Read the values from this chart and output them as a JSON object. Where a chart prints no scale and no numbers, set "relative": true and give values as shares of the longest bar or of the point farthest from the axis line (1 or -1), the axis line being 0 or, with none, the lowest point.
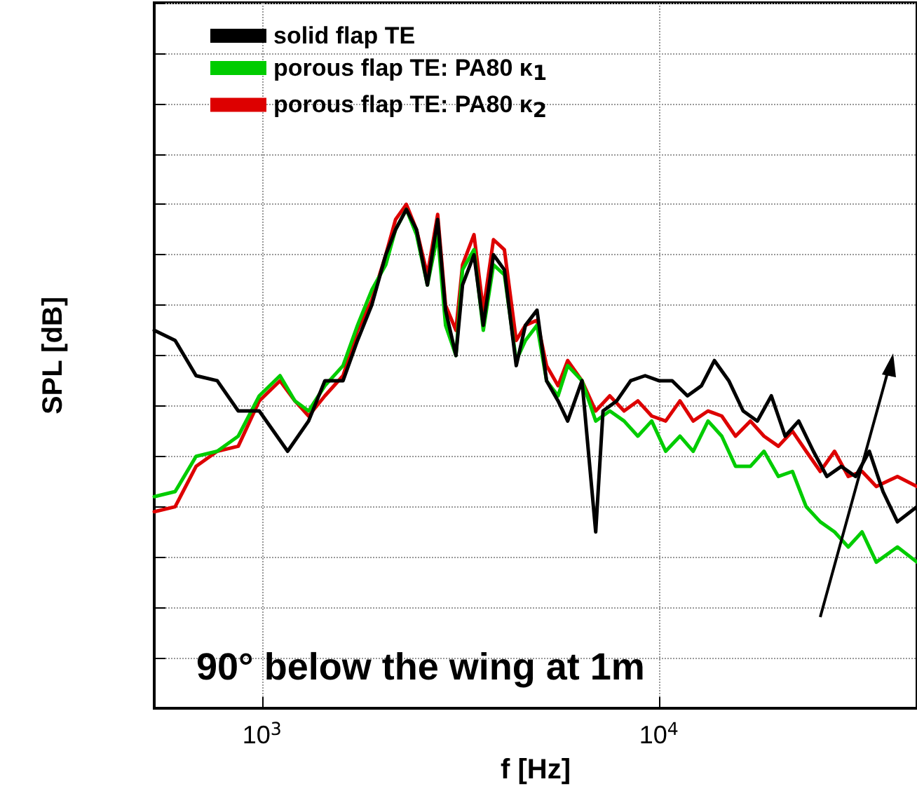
{
  "chart_data": {
    "type": "line",
    "relative": true,
    "xlabel": "f [Hz]",
    "ylabel": "SPL [dB]",
    "log": "x",
    "xlim": [
      535,
      44700
    ],
    "xticks": [
      {
        "value": 1000,
        "label": "10$^{3}$"
      },
      {
        "value": 10000,
        "label": "10$^{4}$"
      }
    ],
    "grid": true,
    "legend": "top left",
    "line_style": "solid",
    "marker": "none",
    "annotations": [
      "90° below the wing at 1m"
    ],
    "series": [
      {
        "name": "solid flap TE",
        "color": "#000000",
        "x": [
          535,
          604,
          682,
          771,
          871,
          984,
          1160,
          1310,
          1440,
          1600,
          1740,
          1890,
          2050,
          2170,
          2310,
          2450,
          2610,
          2770,
          2900,
          3080,
          3200,
          3420,
          3610,
          3830,
          4080,
          4370,
          4610,
          4930,
          5210,
          5570,
          5890,
          6400,
          6930,
          7230,
          7830,
          8490,
          9230,
          10000,
          10800,
          11800,
          12800,
          13800,
          15000,
          16300,
          17700,
          19200,
          20800,
          22500,
          24500,
          26500,
          28800,
          31300,
          33900,
          36700,
          39900,
          44700
        ],
        "values": [
          0.75,
          0.73,
          0.66,
          0.65,
          0.59,
          0.59,
          0.51,
          0.57,
          0.65,
          0.65,
          0.73,
          0.8,
          0.9,
          0.95,
          0.99,
          0.95,
          0.84,
          0.97,
          0.79,
          0.7,
          0.84,
          0.9,
          0.76,
          0.9,
          0.87,
          0.68,
          0.76,
          0.79,
          0.65,
          0.61,
          0.57,
          0.65,
          0.35,
          0.59,
          0.61,
          0.65,
          0.66,
          0.65,
          0.65,
          0.62,
          0.64,
          0.69,
          0.65,
          0.59,
          0.57,
          0.62,
          0.54,
          0.57,
          0.51,
          0.46,
          0.48,
          0.46,
          0.51,
          0.43,
          0.37,
          0.4
        ]
      },
      {
        "name": "porous flap TE: PA80 κ$_{1}$",
        "color": "#00cc00",
        "x": [
          535,
          604,
          682,
          771,
          871,
          984,
          1110,
          1210,
          1310,
          1440,
          1600,
          1740,
          1890,
          2050,
          2170,
          2310,
          2450,
          2610,
          2770,
          2900,
          3080,
          3200,
          3420,
          3610,
          3830,
          4080,
          4370,
          4610,
          4930,
          5210,
          5570,
          5890,
          6400,
          6930,
          7520,
          8170,
          8850,
          9590,
          10400,
          11300,
          12200,
          13300,
          14400,
          15600,
          17000,
          18400,
          20000,
          21700,
          23500,
          25500,
          27700,
          30000,
          32500,
          35300,
          39900,
          44700
        ],
        "values": [
          0.42,
          0.43,
          0.5,
          0.51,
          0.54,
          0.62,
          0.66,
          0.61,
          0.59,
          0.64,
          0.68,
          0.76,
          0.83,
          0.88,
          0.95,
          0.99,
          0.94,
          0.84,
          0.94,
          0.76,
          0.7,
          0.87,
          0.91,
          0.75,
          0.88,
          0.86,
          0.69,
          0.73,
          0.76,
          0.65,
          0.62,
          0.68,
          0.65,
          0.57,
          0.59,
          0.57,
          0.54,
          0.57,
          0.51,
          0.54,
          0.51,
          0.57,
          0.54,
          0.48,
          0.48,
          0.51,
          0.46,
          0.47,
          0.4,
          0.37,
          0.35,
          0.32,
          0.35,
          0.29,
          0.32,
          0.29
        ]
      },
      {
        "name": "porous flap TE: PA80 κ$_{2}$",
        "color": "#dd0000",
        "x": [
          535,
          604,
          682,
          771,
          871,
          984,
          1110,
          1210,
          1310,
          1440,
          1600,
          1740,
          1890,
          2050,
          2170,
          2310,
          2450,
          2610,
          2770,
          2900,
          3080,
          3200,
          3420,
          3610,
          3830,
          4080,
          4370,
          4610,
          4930,
          5210,
          5570,
          5890,
          6400,
          6930,
          7520,
          8170,
          8850,
          9590,
          10400,
          11300,
          12200,
          13300,
          14400,
          15600,
          17000,
          18400,
          20000,
          21700,
          23500,
          25500,
          27700,
          30000,
          32500,
          35300,
          39900,
          44700
        ],
        "values": [
          0.39,
          0.4,
          0.48,
          0.51,
          0.52,
          0.61,
          0.65,
          0.61,
          0.58,
          0.62,
          0.66,
          0.75,
          0.81,
          0.9,
          0.97,
          1.0,
          0.95,
          0.86,
          0.98,
          0.8,
          0.75,
          0.88,
          0.94,
          0.79,
          0.93,
          0.91,
          0.73,
          0.76,
          0.77,
          0.68,
          0.64,
          0.69,
          0.65,
          0.59,
          0.62,
          0.59,
          0.61,
          0.58,
          0.57,
          0.61,
          0.57,
          0.59,
          0.58,
          0.54,
          0.57,
          0.54,
          0.52,
          0.55,
          0.51,
          0.47,
          0.51,
          0.46,
          0.47,
          0.44,
          0.46,
          0.44
        ]
      }
    ]
  }
}
